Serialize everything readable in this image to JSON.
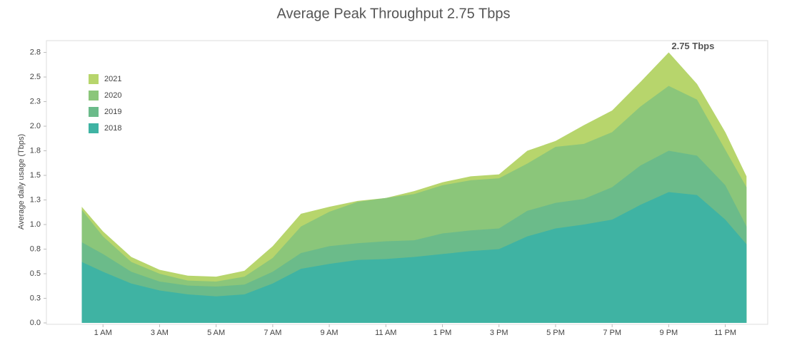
{
  "chart_data": {
    "type": "area",
    "title": "Average Peak Throughput 2.75 Tbps",
    "y_label": "Average daily usage (Tbps)",
    "annotation": "2.75 Tbps",
    "x": [
      0.25,
      1,
      2,
      3,
      4,
      5,
      6,
      7,
      8,
      9,
      10,
      11,
      12,
      13,
      14,
      15,
      16,
      17,
      18,
      19,
      20,
      21,
      22,
      23,
      23.75
    ],
    "series": [
      {
        "name": "2021",
        "color": "#b7d56c",
        "values": [
          1.18,
          0.93,
          0.67,
          0.54,
          0.48,
          0.47,
          0.53,
          0.78,
          1.11,
          1.18,
          1.24,
          1.27,
          1.34,
          1.43,
          1.49,
          1.51,
          1.75,
          1.85,
          2.01,
          2.16,
          2.45,
          2.75,
          2.43,
          1.94,
          1.49
        ]
      },
      {
        "name": "2020",
        "color": "#8bc67a",
        "values": [
          1.15,
          0.88,
          0.62,
          0.5,
          0.43,
          0.42,
          0.47,
          0.66,
          0.98,
          1.13,
          1.23,
          1.27,
          1.31,
          1.4,
          1.45,
          1.47,
          1.62,
          1.79,
          1.82,
          1.94,
          2.2,
          2.41,
          2.27,
          1.76,
          1.38
        ]
      },
      {
        "name": "2019",
        "color": "#6bbb8a",
        "values": [
          0.82,
          0.7,
          0.52,
          0.42,
          0.38,
          0.37,
          0.39,
          0.52,
          0.71,
          0.78,
          0.81,
          0.83,
          0.84,
          0.91,
          0.94,
          0.96,
          1.14,
          1.22,
          1.26,
          1.38,
          1.6,
          1.75,
          1.7,
          1.4,
          0.98
        ]
      },
      {
        "name": "2018",
        "color": "#3fb3a3",
        "values": [
          0.62,
          0.52,
          0.4,
          0.33,
          0.29,
          0.27,
          0.29,
          0.4,
          0.55,
          0.6,
          0.64,
          0.65,
          0.67,
          0.7,
          0.73,
          0.75,
          0.88,
          0.96,
          1.0,
          1.05,
          1.2,
          1.33,
          1.3,
          1.05,
          0.8
        ]
      }
    ],
    "xlim": [
      -1,
      24.5
    ],
    "xticks": [
      {
        "value": 1,
        "label": "1 AM"
      },
      {
        "value": 3,
        "label": "3 AM"
      },
      {
        "value": 5,
        "label": "5 AM"
      },
      {
        "value": 7,
        "label": "7 AM"
      },
      {
        "value": 9,
        "label": "9 AM"
      },
      {
        "value": 11,
        "label": "11 AM"
      },
      {
        "value": 13,
        "label": "1 PM"
      },
      {
        "value": 15,
        "label": "3 PM"
      },
      {
        "value": 17,
        "label": "5 PM"
      },
      {
        "value": 19,
        "label": "7 PM"
      },
      {
        "value": 21,
        "label": "9 PM"
      },
      {
        "value": 23,
        "label": "11 PM"
      }
    ],
    "ylim": [
      0,
      2.87
    ],
    "yticks": [
      {
        "value": 0,
        "label": "0.0"
      },
      {
        "value": 0.25,
        "label": "0.3"
      },
      {
        "value": 0.5,
        "label": "0.5"
      },
      {
        "value": 0.75,
        "label": "0.8"
      },
      {
        "value": 1,
        "label": "1.0"
      },
      {
        "value": 1.25,
        "label": "1.3"
      },
      {
        "value": 1.5,
        "label": "1.5"
      },
      {
        "value": 1.75,
        "label": "1.8"
      },
      {
        "value": 2,
        "label": "2.0"
      },
      {
        "value": 2.25,
        "label": "2.3"
      },
      {
        "value": 2.5,
        "label": "2.5"
      },
      {
        "value": 2.75,
        "label": "2.8"
      }
    ],
    "legend": "upper left"
  }
}
